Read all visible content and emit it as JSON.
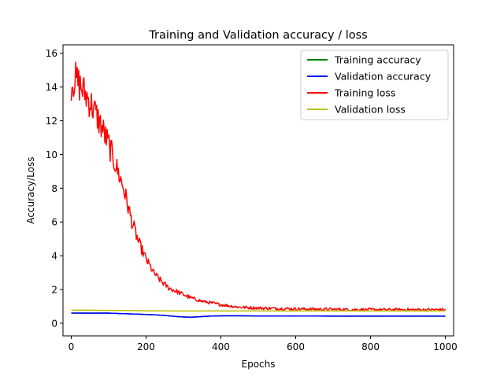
{
  "chart_data": {
    "type": "line",
    "title": "Training and Validation accuracy / loss",
    "xlabel": "Epochs",
    "ylabel": "Accuracy/Loss",
    "xlim": [
      -22,
      1022
    ],
    "ylim": [
      -0.75,
      16.5
    ],
    "xticks": [
      0,
      200,
      400,
      600,
      800,
      1000
    ],
    "yticks": [
      0,
      2,
      4,
      6,
      8,
      10,
      12,
      14,
      16
    ],
    "grid": false,
    "legend_position": "top-right",
    "series": [
      {
        "name": "Training accuracy",
        "color": "#008000",
        "x": [
          0,
          50,
          100,
          150,
          200,
          230,
          260,
          280,
          300,
          320,
          340,
          360,
          380,
          400,
          450,
          500,
          600,
          700,
          800,
          900,
          1000
        ],
        "y": [
          0.6,
          0.6,
          0.6,
          0.56,
          0.52,
          0.49,
          0.44,
          0.4,
          0.37,
          0.36,
          0.38,
          0.41,
          0.43,
          0.44,
          0.44,
          0.43,
          0.43,
          0.42,
          0.42,
          0.42,
          0.42
        ],
        "noise": 0
      },
      {
        "name": "Validation accuracy",
        "color": "#0000ff",
        "x": [
          0,
          50,
          100,
          150,
          200,
          230,
          260,
          280,
          300,
          320,
          340,
          360,
          380,
          400,
          450,
          500,
          600,
          700,
          800,
          900,
          1000
        ],
        "y": [
          0.6,
          0.6,
          0.6,
          0.56,
          0.52,
          0.49,
          0.44,
          0.4,
          0.37,
          0.36,
          0.38,
          0.41,
          0.43,
          0.44,
          0.44,
          0.43,
          0.43,
          0.42,
          0.42,
          0.42,
          0.42
        ],
        "noise": 0.02
      },
      {
        "name": "Training loss",
        "color": "#ff0000",
        "x": [
          0,
          10,
          20,
          40,
          60,
          80,
          100,
          120,
          140,
          160,
          180,
          200,
          220,
          240,
          260,
          280,
          300,
          320,
          350,
          400,
          450,
          500,
          600,
          700,
          800,
          900,
          1000
        ],
        "y": [
          14.2,
          14.5,
          14.2,
          13.5,
          12.7,
          11.7,
          10.6,
          9.3,
          8.0,
          6.2,
          4.8,
          3.8,
          3.0,
          2.5,
          2.1,
          1.9,
          1.7,
          1.5,
          1.3,
          1.1,
          0.95,
          0.9,
          0.85,
          0.82,
          0.8,
          0.8,
          0.8
        ],
        "noise": 0.6
      },
      {
        "name": "Validation loss",
        "color": "#bfbf00",
        "x": [
          0,
          100,
          200,
          300,
          400,
          500,
          600,
          700,
          800,
          900,
          1000
        ],
        "y": [
          0.78,
          0.76,
          0.74,
          0.73,
          0.73,
          0.73,
          0.73,
          0.73,
          0.73,
          0.73,
          0.73
        ],
        "noise": 0
      }
    ]
  }
}
